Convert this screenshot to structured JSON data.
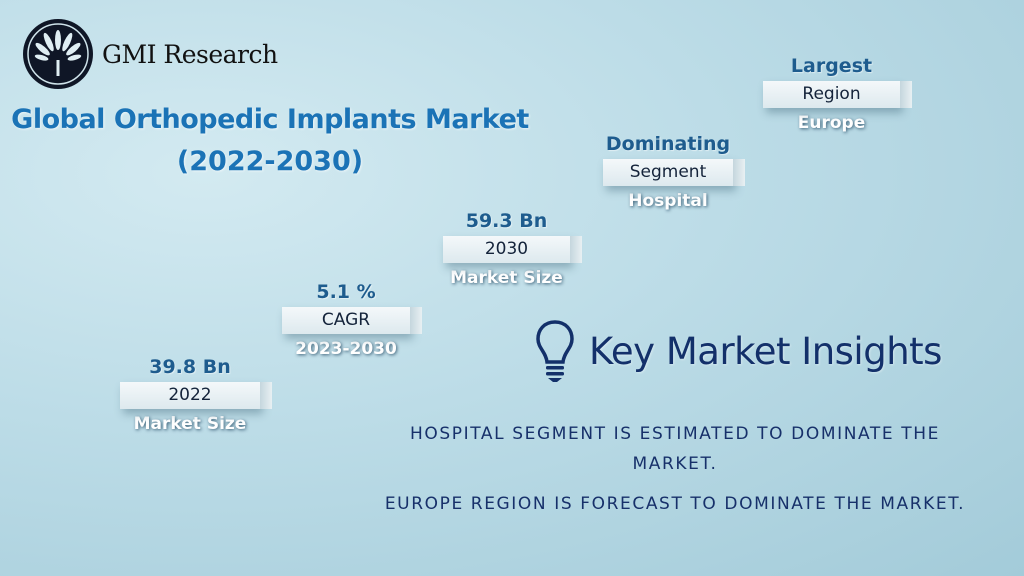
{
  "brand": {
    "name": "GMI Research"
  },
  "title": {
    "line1": "Global Orthopedic Implants Market",
    "line2": "(2022-2030)"
  },
  "steps": [
    {
      "value": "39.8 Bn",
      "bar": "2022",
      "label": "Market Size"
    },
    {
      "value": "5.1 %",
      "bar": "CAGR",
      "label": "2023-2030"
    },
    {
      "value": "59.3 Bn",
      "bar": "2030",
      "label": "Market Size"
    },
    {
      "value": "Dominating",
      "bar": "Segment",
      "label": "Hospital"
    },
    {
      "value": "Largest",
      "bar": "Region",
      "label": "Europe"
    }
  ],
  "insights": {
    "heading": "Key Market Insights",
    "icon": "lightbulb-icon",
    "items": [
      "HOSPITAL SEGMENT IS ESTIMATED TO DOMINATE THE MARKET.",
      "EUROPE REGION IS FORECAST TO DOMINATE THE MARKET."
    ]
  }
}
